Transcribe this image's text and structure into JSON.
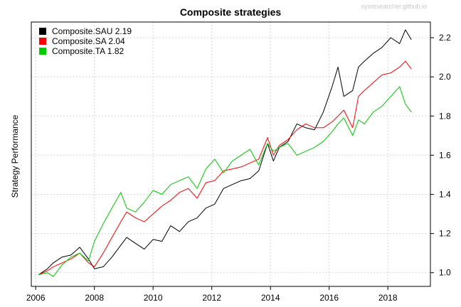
{
  "chart_data": {
    "type": "line",
    "title": "Composite strategies",
    "watermark": "sysresearcher.github.io",
    "xlabel": "",
    "ylabel": "Strategy Performance",
    "xlim": [
      2005.85,
      2019.45
    ],
    "ylim": [
      0.93,
      2.28
    ],
    "x_ticks": [
      2006,
      2008,
      2010,
      2012,
      2014,
      2016,
      2018
    ],
    "x_tick_labels": [
      "2006",
      "2008",
      "2010",
      "2012",
      "2014",
      "2016",
      "2018"
    ],
    "y_ticks": [
      1.0,
      1.2,
      1.4,
      1.6,
      1.8,
      2.0,
      2.2
    ],
    "y_tick_labels": [
      "1.0",
      "1.2",
      "1.4",
      "1.6",
      "1.8",
      "2.0",
      "2.2"
    ],
    "y_axis_side": "right",
    "grid": true,
    "legend_position": "top-left",
    "series": [
      {
        "name": "Composite.SAU 2.19",
        "color": "#000000",
        "x": [
          2006.1,
          2006.4,
          2006.6,
          2006.9,
          2007.2,
          2007.5,
          2007.8,
          2008.0,
          2008.3,
          2008.6,
          2008.9,
          2009.1,
          2009.4,
          2009.7,
          2010.0,
          2010.3,
          2010.6,
          2010.9,
          2011.2,
          2011.5,
          2011.8,
          2012.1,
          2012.4,
          2012.7,
          2013.0,
          2013.3,
          2013.6,
          2013.9,
          2014.1,
          2014.3,
          2014.6,
          2014.9,
          2015.2,
          2015.5,
          2015.8,
          2016.1,
          2016.3,
          2016.5,
          2016.8,
          2017.0,
          2017.2,
          2017.5,
          2017.8,
          2018.1,
          2018.4,
          2018.6,
          2018.8
        ],
        "values": [
          0.99,
          1.02,
          1.05,
          1.08,
          1.09,
          1.13,
          1.07,
          1.02,
          1.03,
          1.08,
          1.14,
          1.18,
          1.15,
          1.12,
          1.17,
          1.16,
          1.24,
          1.21,
          1.26,
          1.28,
          1.33,
          1.35,
          1.43,
          1.45,
          1.47,
          1.48,
          1.52,
          1.66,
          1.57,
          1.64,
          1.67,
          1.76,
          1.74,
          1.73,
          1.82,
          1.95,
          2.05,
          1.9,
          1.93,
          2.05,
          2.08,
          2.12,
          2.15,
          2.2,
          2.17,
          2.24,
          2.19
        ]
      },
      {
        "name": "Composite.SA 2.04",
        "color": "#ff0000",
        "x": [
          2006.1,
          2006.4,
          2006.6,
          2006.9,
          2007.2,
          2007.5,
          2007.8,
          2008.0,
          2008.3,
          2008.6,
          2008.9,
          2009.1,
          2009.4,
          2009.7,
          2010.0,
          2010.3,
          2010.6,
          2010.9,
          2011.2,
          2011.5,
          2011.8,
          2012.1,
          2012.4,
          2012.7,
          2013.0,
          2013.3,
          2013.6,
          2013.9,
          2014.1,
          2014.3,
          2014.6,
          2014.9,
          2015.2,
          2015.5,
          2015.8,
          2016.1,
          2016.3,
          2016.5,
          2016.8,
          2017.0,
          2017.2,
          2017.5,
          2017.8,
          2018.1,
          2018.4,
          2018.6,
          2018.8
        ],
        "values": [
          0.99,
          1.01,
          1.03,
          1.05,
          1.07,
          1.1,
          1.05,
          1.03,
          1.1,
          1.18,
          1.26,
          1.31,
          1.28,
          1.26,
          1.3,
          1.34,
          1.37,
          1.41,
          1.43,
          1.38,
          1.46,
          1.47,
          1.52,
          1.53,
          1.54,
          1.56,
          1.58,
          1.69,
          1.6,
          1.65,
          1.68,
          1.73,
          1.76,
          1.74,
          1.74,
          1.77,
          1.8,
          1.83,
          1.74,
          1.9,
          1.93,
          1.97,
          2.01,
          2.02,
          2.05,
          2.08,
          2.04
        ]
      },
      {
        "name": "Composite.TA 1.82",
        "color": "#00cc00",
        "x": [
          2006.1,
          2006.4,
          2006.6,
          2006.9,
          2007.2,
          2007.5,
          2007.8,
          2008.0,
          2008.3,
          2008.6,
          2008.9,
          2009.1,
          2009.4,
          2009.7,
          2010.0,
          2010.3,
          2010.6,
          2010.9,
          2011.2,
          2011.5,
          2011.8,
          2012.1,
          2012.4,
          2012.7,
          2013.0,
          2013.3,
          2013.6,
          2013.9,
          2014.1,
          2014.3,
          2014.6,
          2014.9,
          2015.2,
          2015.5,
          2015.8,
          2016.1,
          2016.3,
          2016.5,
          2016.8,
          2017.0,
          2017.2,
          2017.5,
          2017.8,
          2018.1,
          2018.4,
          2018.6,
          2018.8
        ],
        "values": [
          0.99,
          1.0,
          0.98,
          1.04,
          1.08,
          1.1,
          1.06,
          1.16,
          1.25,
          1.33,
          1.41,
          1.33,
          1.31,
          1.36,
          1.42,
          1.4,
          1.45,
          1.47,
          1.49,
          1.43,
          1.53,
          1.58,
          1.51,
          1.57,
          1.6,
          1.63,
          1.55,
          1.66,
          1.62,
          1.64,
          1.66,
          1.6,
          1.62,
          1.64,
          1.67,
          1.72,
          1.76,
          1.79,
          1.7,
          1.78,
          1.76,
          1.82,
          1.85,
          1.9,
          1.95,
          1.86,
          1.82
        ]
      }
    ]
  }
}
